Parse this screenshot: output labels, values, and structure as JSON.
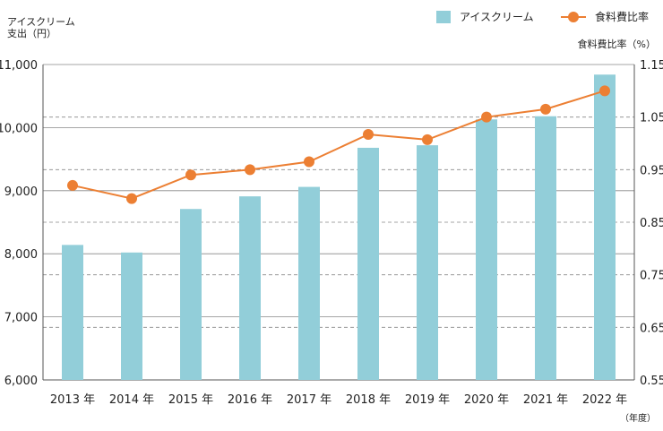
{
  "chart_data": {
    "type": "bar",
    "categories": [
      "2013 年",
      "2014 年",
      "2015 年",
      "2016 年",
      "2017 年",
      "2018 年",
      "2019 年",
      "2020 年",
      "2021 年",
      "2022 年"
    ],
    "series": [
      {
        "name": "アイスクリーム",
        "type": "bar",
        "axis": "left",
        "values": [
          8140,
          8020,
          8710,
          8910,
          9060,
          9680,
          9720,
          10130,
          10180,
          10840
        ]
      },
      {
        "name": "食料費比率",
        "type": "line",
        "axis": "right",
        "values": [
          0.92,
          0.895,
          0.94,
          0.95,
          0.965,
          1.017,
          1.007,
          1.05,
          1.065,
          1.1
        ]
      }
    ],
    "ylabel_left_line1": "アイスクリーム",
    "ylabel_left_line2": "支出（円）",
    "ylabel_right": "食料費比率（%）",
    "xlabel": "（年度）",
    "ylim_left": [
      6000,
      11000
    ],
    "yticks_left": [
      "6,000",
      "7,000",
      "8,000",
      "9,000",
      "10,000",
      "11,000"
    ],
    "ylim_right": [
      0.55,
      1.15
    ],
    "yticks_right": [
      "0.55",
      "0.65",
      "0.75",
      "0.85",
      "0.95",
      "1.05",
      "1.15"
    ],
    "legend_position": "top-right",
    "grid": true,
    "colors": {
      "bar": "#92ced9",
      "line": "#ec7f33",
      "grid": "#888888",
      "axis": "#555555"
    }
  }
}
